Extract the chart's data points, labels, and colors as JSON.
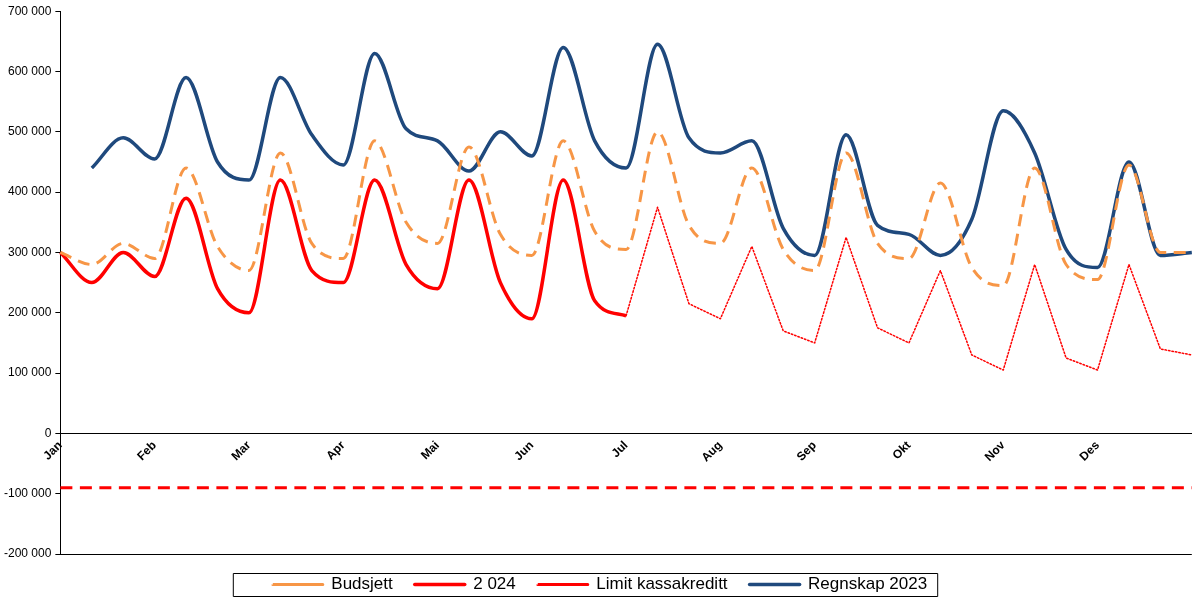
{
  "chart_data": {
    "type": "line",
    "categories": [
      "Jan",
      null,
      null,
      "Feb",
      null,
      null,
      "Mar",
      null,
      null,
      "Apr",
      null,
      null,
      "Mai",
      null,
      null,
      "Jun",
      null,
      null,
      "Jul",
      null,
      null,
      "Aug",
      null,
      null,
      "Sep",
      null,
      null,
      "Okt",
      null,
      null,
      "Nov",
      null,
      null,
      "Des",
      null,
      null,
      null
    ],
    "series": [
      {
        "name": "Budsjett",
        "color": "#f79646",
        "line_style": "dashed",
        "values": [
          300000,
          280000,
          315000,
          290000,
          440000,
          310000,
          270000,
          465000,
          315000,
          290000,
          485000,
          350000,
          315000,
          475000,
          330000,
          295000,
          485000,
          335000,
          305000,
          500000,
          345000,
          315000,
          440000,
          305000,
          270000,
          465000,
          315000,
          290000,
          415000,
          275000,
          245000,
          440000,
          280000,
          255000,
          445000,
          300000,
          300000
        ]
      },
      {
        "name": "2 024",
        "color": "#ff0000",
        "line_style": "solid",
        "values": [
          300000,
          250000,
          300000,
          260000,
          390000,
          240000,
          200000,
          420000,
          270000,
          250000,
          420000,
          280000,
          240000,
          420000,
          250000,
          190000,
          420000,
          220000,
          195000,
          null,
          null,
          null,
          null,
          null,
          null,
          null,
          null,
          null,
          null,
          null,
          null,
          null,
          null,
          null,
          null,
          null,
          null
        ]
      },
      {
        "color": "#ff0000",
        "line_style": "dotted",
        "values": [
          null,
          null,
          null,
          null,
          null,
          null,
          null,
          null,
          null,
          null,
          null,
          null,
          null,
          null,
          null,
          null,
          null,
          null,
          195000,
          375000,
          215000,
          190000,
          310000,
          170000,
          150000,
          325000,
          175000,
          150000,
          270000,
          130000,
          105000,
          280000,
          125000,
          105000,
          280000,
          140000,
          130000
        ]
      },
      {
        "name": "Limit kassakreditt",
        "color": "#ff0000",
        "line_style": "dashed",
        "values": [
          -90000,
          -90000,
          -90000,
          -90000,
          -90000,
          -90000,
          -90000,
          -90000,
          -90000,
          -90000,
          -90000,
          -90000,
          -90000,
          -90000,
          -90000,
          -90000,
          -90000,
          -90000,
          -90000,
          -90000,
          -90000,
          -90000,
          -90000,
          -90000,
          -90000,
          -90000,
          -90000,
          -90000,
          -90000,
          -90000,
          -90000,
          -90000,
          -90000,
          -90000,
          -90000,
          -90000,
          -90000
        ]
      },
      {
        "name": "Regnskap 2023",
        "color": "#1f497d",
        "line_style": "solid",
        "values": [
          null,
          440000,
          490000,
          455000,
          590000,
          450000,
          420000,
          590000,
          495000,
          445000,
          630000,
          505000,
          485000,
          435000,
          500000,
          460000,
          640000,
          485000,
          440000,
          645000,
          490000,
          465000,
          485000,
          340000,
          295000,
          495000,
          345000,
          330000,
          295000,
          355000,
          535000,
          465000,
          305000,
          275000,
          450000,
          295000,
          300000
        ]
      }
    ],
    "ylim": [
      -200000,
      700000
    ],
    "yticks": [
      {
        "value": -200000,
        "label": "-200 000"
      },
      {
        "value": -100000,
        "label": "-100 000"
      },
      {
        "value": 0,
        "label": "0"
      },
      {
        "value": 100000,
        "label": "100 000"
      },
      {
        "value": 200000,
        "label": "200 000"
      },
      {
        "value": 300000,
        "label": "300 000"
      },
      {
        "value": 400000,
        "label": "400 000"
      },
      {
        "value": 500000,
        "label": "500 000"
      },
      {
        "value": 600000,
        "label": "600 000"
      },
      {
        "value": 700000,
        "label": "700 000"
      }
    ],
    "grid": false,
    "legend": "bottom",
    "marker": "none"
  }
}
